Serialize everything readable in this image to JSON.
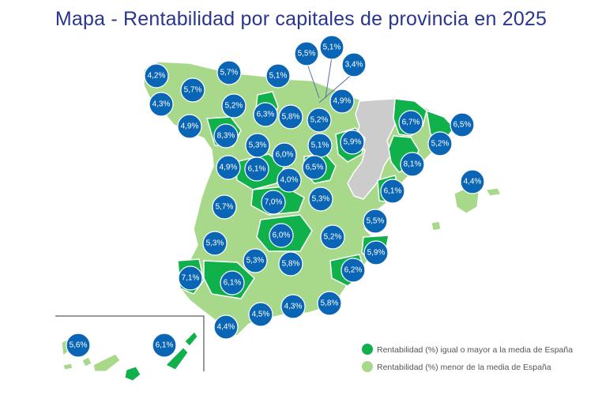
{
  "title": "Mapa - Rentabilidad por capitales de provincia en 2025",
  "colors": {
    "above_or_equal": "#10b04a",
    "below": "#a8d98a",
    "no_data": "#cccccc",
    "badge": "#0a66b5",
    "title": "#2a3590"
  },
  "legend": [
    {
      "label": "Rentabilidad (%) igual o mayor a la media de España",
      "color": "#10b04a"
    },
    {
      "label": "Rentabilidad (%) menor de la media de España",
      "color": "#a8d98a"
    }
  ],
  "provinces": [
    {
      "name": "A Coruña",
      "value": "4,2%",
      "category": "below"
    },
    {
      "name": "Lugo",
      "value": "5,7%",
      "category": "below"
    },
    {
      "name": "Asturias",
      "value": "5,7%",
      "category": "below"
    },
    {
      "name": "Cantabria",
      "value": "5,1%",
      "category": "below"
    },
    {
      "name": "Bizkaia",
      "value": "5,5%",
      "category": "below"
    },
    {
      "name": "Gipuzkoa",
      "value": "5,1%",
      "category": "below"
    },
    {
      "name": "Álava",
      "value": "3,4%",
      "category": "below"
    },
    {
      "name": "Pontevedra",
      "value": "4,3%",
      "category": "below"
    },
    {
      "name": "León",
      "value": "5,2%",
      "category": "below"
    },
    {
      "name": "Palencia",
      "value": "6,3%",
      "category": "above"
    },
    {
      "name": "Burgos",
      "value": "5,8%",
      "category": "below"
    },
    {
      "name": "La Rioja",
      "value": "5,2%",
      "category": "below"
    },
    {
      "name": "Navarra",
      "value": "4,9%",
      "category": "below"
    },
    {
      "name": "Ourense",
      "value": "4,9%",
      "category": "below"
    },
    {
      "name": "Zamora",
      "value": "8,3%",
      "category": "above"
    },
    {
      "name": "Valladolid",
      "value": "5,3%",
      "category": "below"
    },
    {
      "name": "Soria",
      "value": "5,1%",
      "category": "below"
    },
    {
      "name": "Segovia",
      "value": "6,0%",
      "category": "above"
    },
    {
      "name": "Zaragoza",
      "value": "5,9%",
      "category": "above"
    },
    {
      "name": "Lleida",
      "value": "6,7%",
      "category": "above"
    },
    {
      "name": "Girona",
      "value": "6,5%",
      "category": "above"
    },
    {
      "name": "Barcelona",
      "value": "5,2%",
      "category": "below"
    },
    {
      "name": "Tarragona",
      "value": "8,1%",
      "category": "above"
    },
    {
      "name": "Salamanca",
      "value": "4,9%",
      "category": "below"
    },
    {
      "name": "Ávila",
      "value": "6,1%",
      "category": "above"
    },
    {
      "name": "Madrid",
      "value": "4,0%",
      "category": "below"
    },
    {
      "name": "Guadalajara",
      "value": "6,5%",
      "category": "above"
    },
    {
      "name": "Castellón",
      "value": "6,1%",
      "category": "above"
    },
    {
      "name": "Illes Balears",
      "value": "4,4%",
      "category": "below"
    },
    {
      "name": "Cáceres",
      "value": "5,7%",
      "category": "below"
    },
    {
      "name": "Toledo",
      "value": "7,0%",
      "category": "above"
    },
    {
      "name": "Cuenca",
      "value": "5,3%",
      "category": "below"
    },
    {
      "name": "Valencia",
      "value": "5,5%",
      "category": "below"
    },
    {
      "name": "Badajoz",
      "value": "5,3%",
      "category": "below"
    },
    {
      "name": "Ciudad Real",
      "value": "6,0%",
      "category": "above"
    },
    {
      "name": "Albacete",
      "value": "5,2%",
      "category": "below"
    },
    {
      "name": "Alicante",
      "value": "5,9%",
      "category": "above"
    },
    {
      "name": "Huelva",
      "value": "7,1%",
      "category": "above"
    },
    {
      "name": "Sevilla",
      "value": "6,1%",
      "category": "above"
    },
    {
      "name": "Córdoba",
      "value": "5,3%",
      "category": "below"
    },
    {
      "name": "Jaén",
      "value": "5,8%",
      "category": "below"
    },
    {
      "name": "Murcia",
      "value": "6,2%",
      "category": "above"
    },
    {
      "name": "Cádiz",
      "value": "4,4%",
      "category": "below"
    },
    {
      "name": "Málaga",
      "value": "4,5%",
      "category": "below"
    },
    {
      "name": "Granada",
      "value": "4,3%",
      "category": "below"
    },
    {
      "name": "Almería",
      "value": "5,8%",
      "category": "below"
    },
    {
      "name": "Santa Cruz de Tenerife",
      "value": "5,6%",
      "category": "below"
    },
    {
      "name": "Las Palmas",
      "value": "6,1%",
      "category": "above"
    }
  ]
}
